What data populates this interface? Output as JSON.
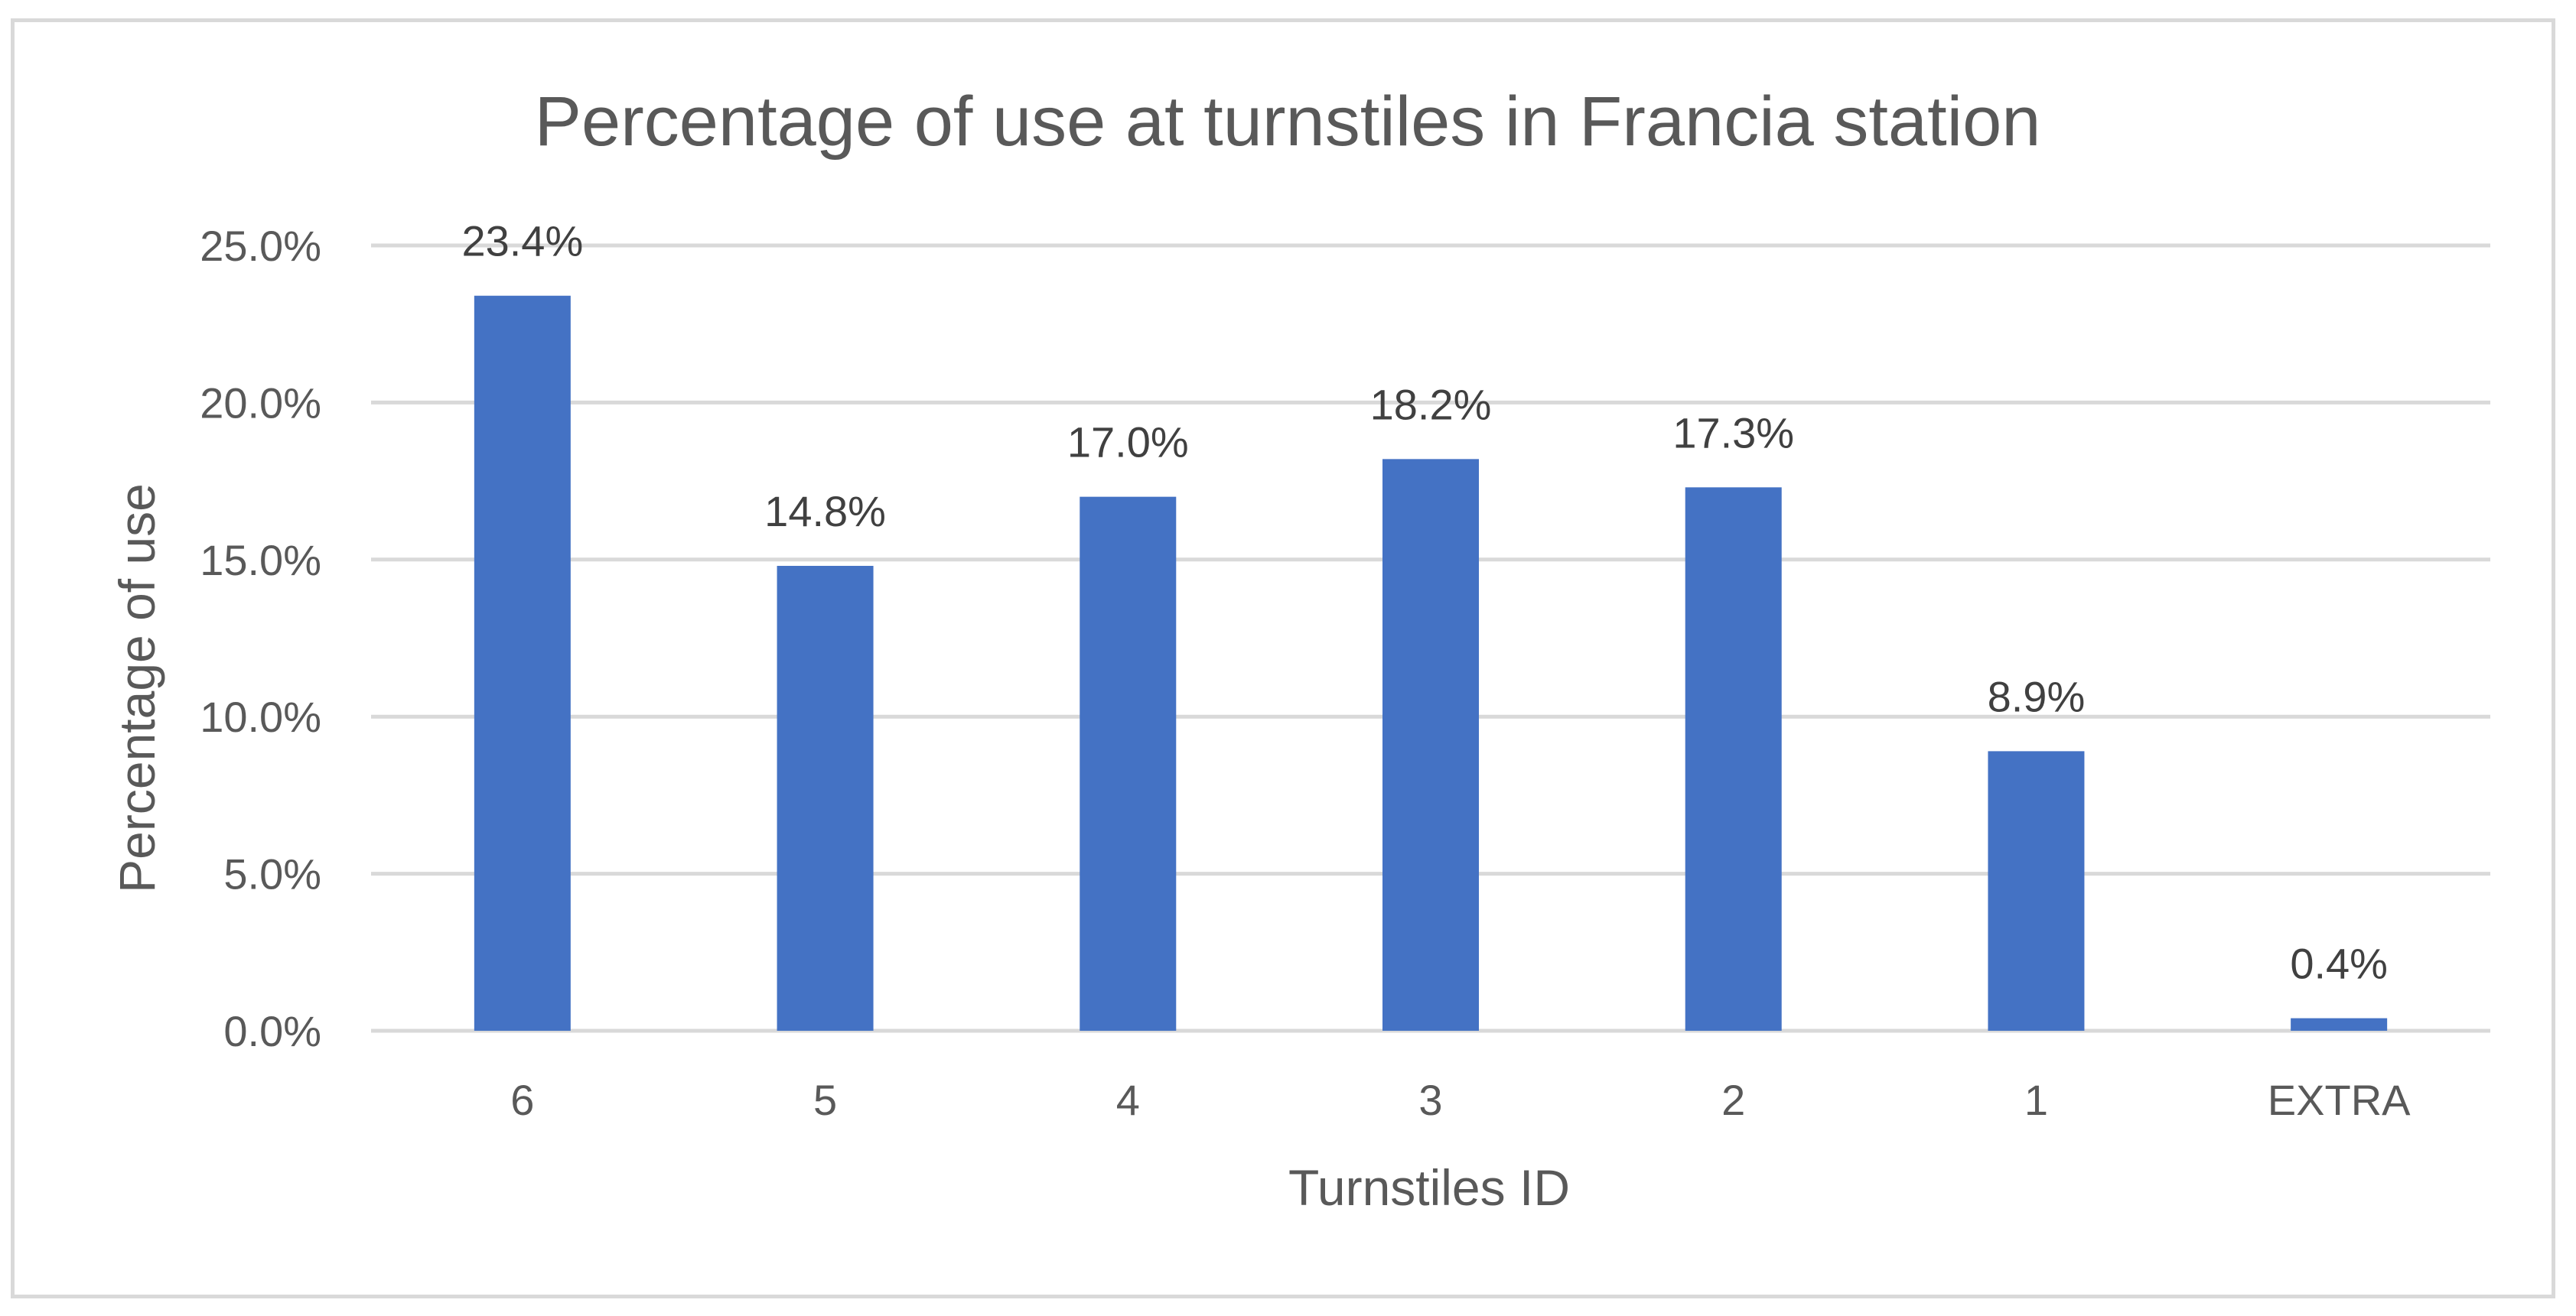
{
  "chart_data": {
    "type": "bar",
    "title": "Percentage of use at turnstiles in Francia station",
    "xlabel": "Turnstiles ID",
    "ylabel": "Percentage of use",
    "categories": [
      "6",
      "5",
      "4",
      "3",
      "2",
      "1",
      "EXTRA"
    ],
    "values": [
      23.4,
      14.8,
      17.0,
      18.2,
      17.3,
      8.9,
      0.4
    ],
    "data_labels": [
      "23.4%",
      "14.8%",
      "17.0%",
      "18.2%",
      "17.3%",
      "8.9%",
      "0.4%"
    ],
    "ylim": [
      0,
      25
    ],
    "yticks": [
      0,
      5,
      10,
      15,
      20,
      25
    ],
    "ytick_labels": [
      "0.0%",
      "5.0%",
      "10.0%",
      "15.0%",
      "20.0%",
      "25.0%"
    ],
    "grid": true,
    "legend": "none",
    "bar_color": "#4472c4",
    "grid_color": "#d9d9d9"
  }
}
